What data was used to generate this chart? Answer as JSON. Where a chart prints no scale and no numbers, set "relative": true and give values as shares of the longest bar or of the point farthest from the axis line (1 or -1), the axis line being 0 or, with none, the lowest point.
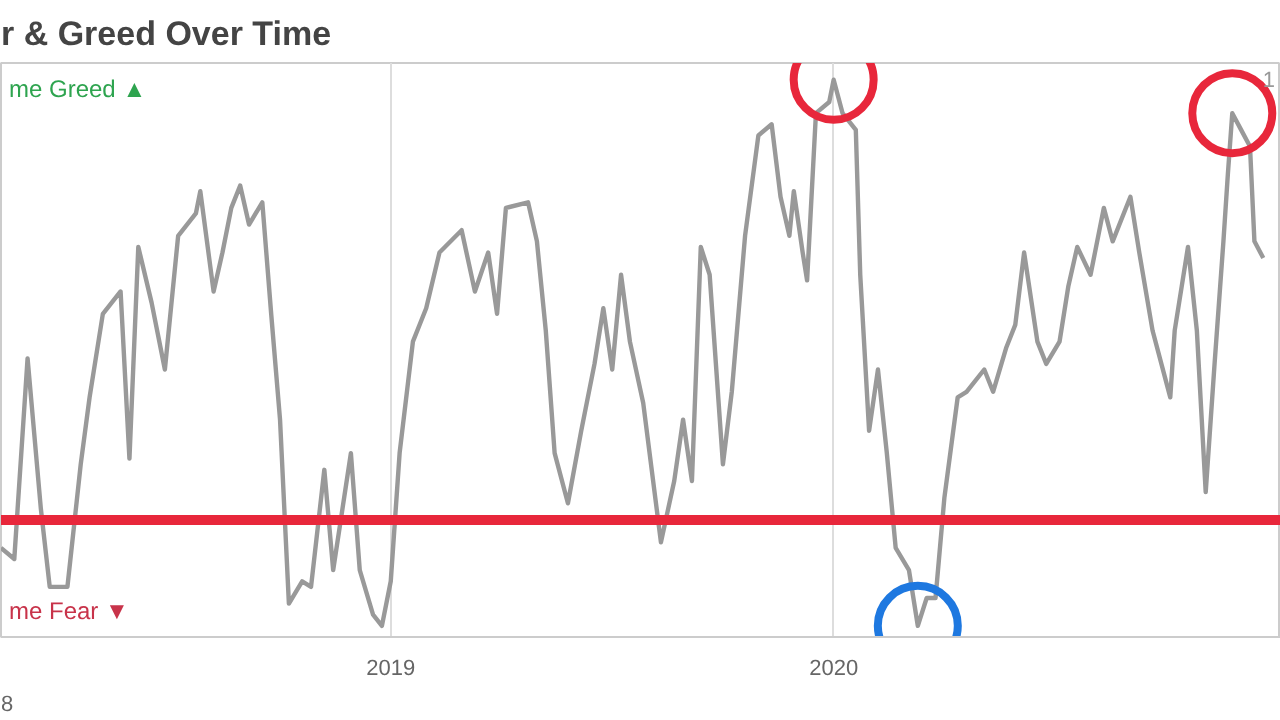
{
  "chart_data": {
    "type": "line",
    "title": "r & Greed Over Time",
    "relative": true,
    "x": [
      2018.12,
      2018.15,
      2018.18,
      2018.21,
      2018.23,
      2018.27,
      2018.3,
      2018.32,
      2018.35,
      2018.39,
      2018.41,
      2018.43,
      2018.46,
      2018.49,
      2018.52,
      2018.56,
      2018.57,
      2018.6,
      2018.62,
      2018.64,
      2018.66,
      2018.68,
      2018.71,
      2018.73,
      2018.75,
      2018.77,
      2018.8,
      2018.82,
      2018.85,
      2018.87,
      2018.91,
      2018.93,
      2018.96,
      2018.98,
      2019.0,
      2019.02,
      2019.05,
      2019.08,
      2019.11,
      2019.16,
      2019.19,
      2019.22,
      2019.24,
      2019.26,
      2019.31,
      2019.33,
      2019.35,
      2019.37,
      2019.4,
      2019.43,
      2019.46,
      2019.48,
      2019.5,
      2019.52,
      2019.54,
      2019.57,
      2019.61,
      2019.64,
      2019.66,
      2019.68,
      2019.7,
      2019.72,
      2019.75,
      2019.77,
      2019.8,
      2019.83,
      2019.86,
      2019.88,
      2019.9,
      2019.91,
      2019.93,
      2019.94,
      2019.96,
      2019.99,
      2020.0,
      2020.02,
      2020.05,
      2020.06,
      2020.08,
      2020.1,
      2020.12,
      2020.14,
      2020.17,
      2020.19,
      2020.21,
      2020.23,
      2020.25,
      2020.28,
      2020.3,
      2020.34,
      2020.36,
      2020.39,
      2020.41,
      2020.43,
      2020.46,
      2020.48,
      2020.51,
      2020.53,
      2020.55,
      2020.58,
      2020.61,
      2020.63,
      2020.67,
      2020.69,
      2020.72,
      2020.76,
      2020.77,
      2020.8,
      2020.82,
      2020.84,
      2020.86,
      2020.88,
      2020.89,
      2020.9,
      2020.92,
      2020.94,
      2020.95,
      2020.97
    ],
    "series": [
      {
        "color": "#999999",
        "values": [
          0.16,
          0.14,
          0.5,
          0.23,
          0.09,
          0.09,
          0.31,
          0.43,
          0.58,
          0.62,
          0.32,
          0.7,
          0.6,
          0.48,
          0.72,
          0.76,
          0.8,
          0.62,
          0.69,
          0.77,
          0.81,
          0.74,
          0.78,
          0.58,
          0.39,
          0.06,
          0.1,
          0.09,
          0.3,
          0.12,
          0.33,
          0.12,
          0.04,
          0.02,
          0.1,
          0.33,
          0.53,
          0.59,
          0.69,
          0.73,
          0.62,
          0.69,
          0.58,
          0.77,
          0.78,
          0.71,
          0.55,
          0.33,
          0.24,
          0.37,
          0.49,
          0.59,
          0.48,
          0.65,
          0.53,
          0.42,
          0.17,
          0.28,
          0.39,
          0.28,
          0.7,
          0.65,
          0.31,
          0.44,
          0.72,
          0.9,
          0.92,
          0.79,
          0.72,
          0.8,
          0.69,
          0.64,
          0.94,
          0.96,
          1.0,
          0.94,
          0.91,
          0.65,
          0.37,
          0.48,
          0.33,
          0.16,
          0.12,
          0.02,
          0.07,
          0.07,
          0.25,
          0.43,
          0.44,
          0.48,
          0.44,
          0.52,
          0.56,
          0.69,
          0.53,
          0.49,
          0.53,
          0.63,
          0.7,
          0.65,
          0.77,
          0.71,
          0.79,
          0.69,
          0.55,
          0.43,
          0.55,
          0.7,
          0.55,
          0.26,
          0.49,
          0.71,
          0.83,
          0.94,
          0.91,
          0.88,
          0.71,
          0.68
        ]
      }
    ],
    "xlim": [
      2018.12,
      2021.01
    ],
    "xticks": [
      2019,
      2020
    ],
    "grid": "x",
    "ref_lines": [
      {
        "axis": "y",
        "value": 0.21,
        "color": "#e8273b"
      }
    ],
    "annotations": [
      "me Greed ▲",
      "me Fear ▼",
      "8",
      "1"
    ]
  }
}
